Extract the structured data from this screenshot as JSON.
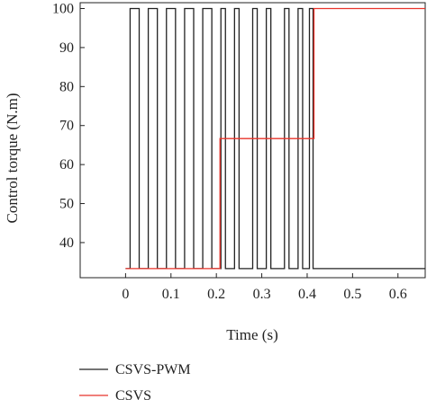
{
  "chart_data": {
    "type": "line",
    "xlabel": "Time (s)",
    "ylabel": "Control torque (N.m)",
    "xlim": [
      -0.1,
      0.66
    ],
    "ylim": [
      31,
      101.5
    ],
    "xticks": [
      0,
      0.1,
      0.2,
      0.3,
      0.4,
      0.5,
      0.6
    ],
    "xtick_labels": [
      "0",
      "0.1",
      "0.2",
      "0.3",
      "0.4",
      "0.5",
      "0.6"
    ],
    "yticks": [
      40,
      50,
      60,
      70,
      80,
      90,
      100
    ],
    "ytick_labels": [
      "40",
      "50",
      "60",
      "70",
      "80",
      "90",
      "100"
    ],
    "legend_position": "below",
    "series": [
      {
        "name": "CSVS-PWM",
        "color": "#222222",
        "step_x": [
          0,
          0.01,
          0.03,
          0.05,
          0.07,
          0.09,
          0.11,
          0.13,
          0.15,
          0.17,
          0.19,
          0.21,
          0.22,
          0.24,
          0.25,
          0.28,
          0.29,
          0.31,
          0.32,
          0.35,
          0.36,
          0.38,
          0.39,
          0.405,
          0.413,
          0.66
        ],
        "step_y": [
          33.33,
          100,
          33.33,
          100,
          33.33,
          100,
          33.33,
          100,
          33.33,
          100,
          33.33,
          100,
          33.33,
          100,
          33.33,
          100,
          33.33,
          100,
          33.33,
          100,
          33.33,
          100,
          33.33,
          100,
          33.33,
          33.33
        ]
      },
      {
        "name": "CSVS",
        "color": "#e8332a",
        "step_x": [
          0,
          0.208,
          0.415,
          0.66
        ],
        "step_y": [
          33.33,
          66.67,
          100,
          100
        ]
      }
    ]
  }
}
